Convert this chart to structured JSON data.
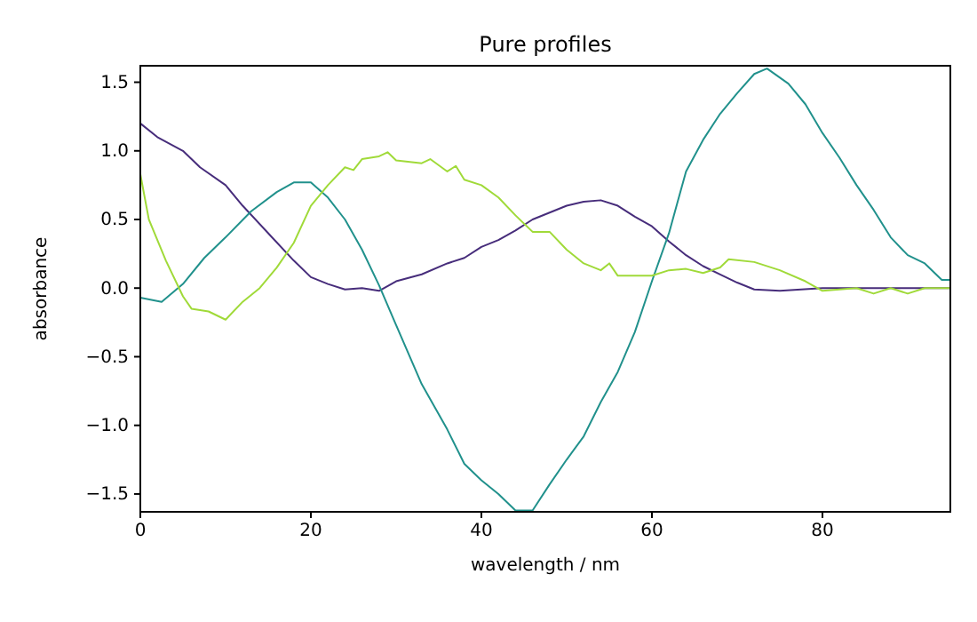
{
  "chart_data": {
    "type": "line",
    "title": "Pure profiles",
    "xlabel": "wavelength / nm",
    "ylabel": "absorbance",
    "xlim": [
      0,
      95
    ],
    "ylim": [
      -1.63,
      1.62
    ],
    "xticks": [
      0,
      20,
      40,
      60,
      80
    ],
    "yticks": [
      {
        "value": -1.5,
        "label": "−1.5"
      },
      {
        "value": -1,
        "label": "−1.0"
      },
      {
        "value": -0.5,
        "label": "−0.5"
      },
      {
        "value": 0,
        "label": "0.0"
      },
      {
        "value": 0.5,
        "label": "0.5"
      },
      {
        "value": 1,
        "label": "1.0"
      },
      {
        "value": 1.5,
        "label": "1.5"
      }
    ],
    "marker": "none",
    "line_style": "solid",
    "series": [
      {
        "color": "#472d7b",
        "x": [
          0,
          2,
          5,
          7,
          10,
          12,
          15,
          18,
          20,
          22,
          24,
          26,
          28,
          30,
          33,
          36,
          38,
          40,
          42,
          44,
          46,
          48,
          50,
          52,
          54,
          56,
          58,
          60,
          62,
          64,
          66,
          68,
          70,
          72,
          75,
          80,
          85,
          90,
          95
        ],
        "values": [
          1.2,
          1.1,
          1.0,
          0.88,
          0.75,
          0.6,
          0.4,
          0.2,
          0.08,
          0.03,
          -0.01,
          0.0,
          -0.02,
          0.05,
          0.1,
          0.18,
          0.22,
          0.3,
          0.35,
          0.42,
          0.5,
          0.55,
          0.6,
          0.63,
          0.64,
          0.6,
          0.52,
          0.45,
          0.34,
          0.24,
          0.16,
          0.1,
          0.04,
          -0.01,
          -0.02,
          0.0,
          0.0,
          0.0,
          0.0
        ]
      },
      {
        "color": "#21918c",
        "x": [
          0,
          2.5,
          5,
          7.5,
          10,
          13,
          16,
          18,
          20,
          22,
          24,
          26,
          28,
          30,
          33,
          36,
          38,
          40,
          42,
          44,
          46,
          48,
          50,
          52,
          54,
          56,
          58,
          60,
          62,
          64,
          66,
          68,
          70,
          72,
          73.5,
          76,
          78,
          80,
          82,
          84,
          86,
          88,
          90,
          92,
          94,
          95
        ],
        "values": [
          -0.07,
          -0.1,
          0.03,
          0.22,
          0.37,
          0.56,
          0.7,
          0.77,
          0.77,
          0.66,
          0.5,
          0.28,
          0.02,
          -0.27,
          -0.7,
          -1.03,
          -1.28,
          -1.4,
          -1.5,
          -1.62,
          -1.62,
          -1.43,
          -1.25,
          -1.08,
          -0.83,
          -0.61,
          -0.32,
          0.05,
          0.4,
          0.85,
          1.08,
          1.27,
          1.42,
          1.56,
          1.6,
          1.49,
          1.34,
          1.13,
          0.95,
          0.75,
          0.57,
          0.37,
          0.24,
          0.18,
          0.06,
          0.06
        ]
      },
      {
        "color": "#a0da39",
        "x": [
          0,
          1,
          3,
          5,
          6,
          8,
          10,
          12,
          14,
          16,
          18,
          20,
          22,
          24,
          25,
          26,
          28,
          29,
          30,
          33,
          34,
          36,
          37,
          38,
          40,
          42,
          44,
          46,
          48,
          50,
          52,
          54,
          55,
          56,
          60,
          62,
          64,
          66,
          68,
          69,
          72,
          75,
          78,
          80,
          84,
          86,
          88,
          90,
          92,
          95
        ],
        "values": [
          0.83,
          0.5,
          0.2,
          -0.06,
          -0.15,
          -0.17,
          -0.23,
          -0.1,
          0.0,
          0.15,
          0.33,
          0.6,
          0.75,
          0.88,
          0.86,
          0.94,
          0.96,
          0.99,
          0.93,
          0.91,
          0.94,
          0.85,
          0.89,
          0.79,
          0.75,
          0.66,
          0.53,
          0.41,
          0.41,
          0.28,
          0.18,
          0.13,
          0.18,
          0.09,
          0.09,
          0.13,
          0.14,
          0.11,
          0.15,
          0.21,
          0.19,
          0.13,
          0.05,
          -0.02,
          0.0,
          -0.04,
          0.0,
          -0.04,
          0.0,
          0.0
        ]
      }
    ]
  }
}
